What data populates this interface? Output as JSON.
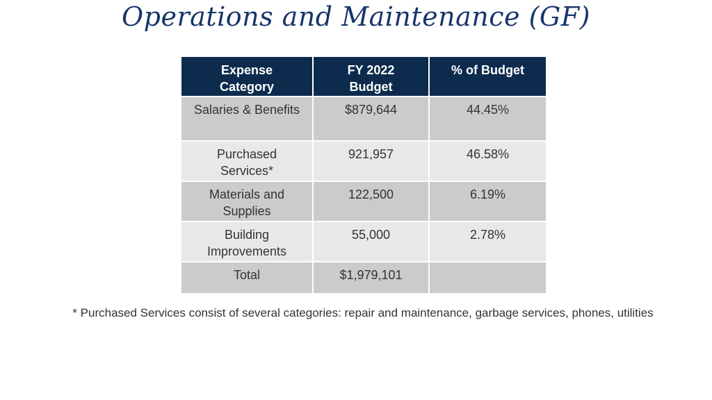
{
  "title": "Operations and Maintenance (GF)",
  "table": {
    "headers": [
      "Expense Category",
      "FY 2022 Budget",
      "% of Budget"
    ],
    "header_lines": [
      [
        "Expense",
        "Category"
      ],
      [
        "FY 2022",
        "Budget"
      ],
      [
        "% of Budget"
      ]
    ],
    "rows": [
      {
        "category_lines": [
          "Salaries & Benefits"
        ],
        "budget": "$879,644",
        "percent": "44.45%"
      },
      {
        "category_lines": [
          "Purchased",
          "Services*"
        ],
        "budget": "921,957",
        "percent": "46.58%"
      },
      {
        "category_lines": [
          "Materials and",
          "Supplies"
        ],
        "budget": "122,500",
        "percent": "6.19%"
      },
      {
        "category_lines": [
          "Building",
          "Improvements"
        ],
        "budget": "55,000",
        "percent": "2.78%"
      },
      {
        "category_lines": [
          "Total"
        ],
        "budget": "$1,979,101",
        "percent": ""
      }
    ]
  },
  "footnote": "* Purchased Services consist of several categories: repair and maintenance, garbage services, phones, utilities",
  "colors": {
    "title": "#17356b",
    "header_bg": "#0d2c4d",
    "row_dark": "#cbcbcb",
    "row_light": "#e7e8e8"
  }
}
